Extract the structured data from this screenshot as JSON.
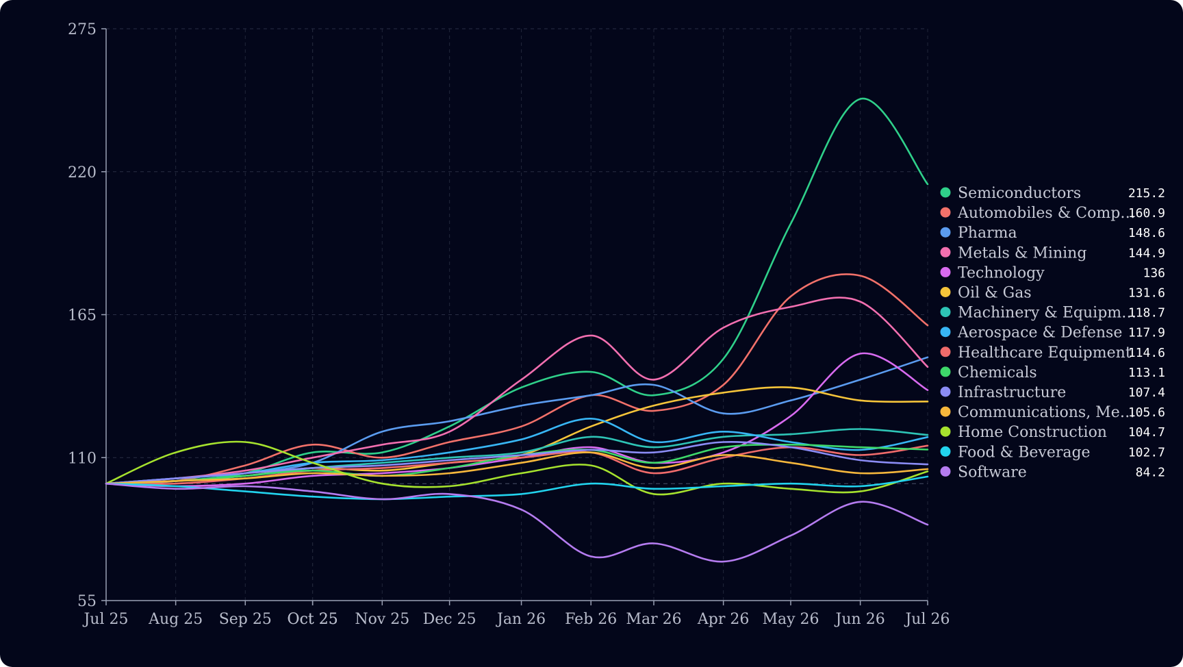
{
  "chart_data": {
    "type": "line",
    "title": "",
    "xlabel": "",
    "ylabel": "",
    "x_tick_labels": [
      "Jul 25",
      "Aug 25",
      "Sep 25",
      "Oct 25",
      "Oct 25",
      "Nov 25",
      "Dec 25",
      "Jan 26",
      "Feb 26",
      "Mar 26",
      "Apr 26",
      "May 26",
      "Jun 26",
      "Jul 26"
    ],
    "x_ticks": [
      "2025-07-25",
      "2025-08-25",
      "2025-09-25",
      "2025-10-25",
      "2025-10-25",
      "2025-11-25",
      "2025-12-25",
      "2026-01-26",
      "2026-02-26",
      "2026-03-26",
      "2026-04-26",
      "2026-05-26",
      "2026-06-26",
      "2026-07-26"
    ],
    "xlim": [
      "2025-07-25",
      "2026-07-26"
    ],
    "ylim": [
      55,
      275
    ],
    "y_ticks": [
      55,
      110,
      165,
      220,
      275
    ],
    "baseline": 100,
    "grid": true,
    "legend_position": "right",
    "x": [
      "2025-07-25",
      "2025-08-25",
      "2025-09-25",
      "2025-10-25",
      "2025-11-25",
      "2025-12-25",
      "2026-01-26",
      "2026-02-26",
      "2026-03-26",
      "2026-04-26",
      "2026-05-26",
      "2026-06-26",
      "2026-07-26"
    ],
    "series": [
      {
        "name": "Semiconductors",
        "color": "#2fd08a",
        "value_label": "215.2",
        "values": [
          100,
          101,
          104,
          112,
          112,
          122,
          137,
          143,
          134,
          148,
          200,
          248,
          215.2
        ]
      },
      {
        "name": "Automobiles & Comp…",
        "color": "#f2716a",
        "value_label": "160.9",
        "values": [
          100,
          101,
          107,
          115,
          110,
          116,
          122,
          134,
          128,
          138,
          172,
          180,
          160.9
        ]
      },
      {
        "name": "Pharma",
        "color": "#5b9cf0",
        "value_label": "148.6",
        "values": [
          100,
          102,
          104,
          108,
          120,
          124,
          130,
          134,
          138,
          127,
          132,
          140,
          148.6
        ]
      },
      {
        "name": "Metals & Mining",
        "color": "#f26fb0",
        "value_label": "144.9",
        "values": [
          100,
          102,
          105,
          110,
          115,
          120,
          140,
          157,
          140,
          160,
          168,
          170,
          144.9
        ]
      },
      {
        "name": "Technology",
        "color": "#d86bf0",
        "value_label": "136",
        "values": [
          100,
          99,
          100,
          103,
          104,
          106,
          110,
          114,
          108,
          112,
          126,
          150,
          136
        ]
      },
      {
        "name": "Oil & Gas",
        "color": "#f5c43a",
        "value_label": "131.6",
        "values": [
          100,
          101,
          103,
          106,
          105,
          108,
          111,
          122,
          130,
          135,
          137,
          132,
          131.6
        ]
      },
      {
        "name": "Machinery & Equipm…",
        "color": "#2ec4b6",
        "value_label": "118.7",
        "values": [
          100,
          101,
          103,
          106,
          108,
          110,
          112,
          118,
          114,
          118,
          119,
          121,
          118.7
        ]
      },
      {
        "name": "Aerospace & Defense",
        "color": "#38b6f5",
        "value_label": "117.9",
        "values": [
          100,
          102,
          104,
          108,
          109,
          112,
          117,
          125,
          116,
          120,
          116,
          113,
          117.9
        ]
      },
      {
        "name": "Healthcare Equipment",
        "color": "#f06b6b",
        "value_label": "114.6",
        "values": [
          100,
          100,
          102,
          105,
          106,
          108,
          110,
          112,
          104,
          110,
          114,
          111,
          114.6
        ]
      },
      {
        "name": "Chemicals",
        "color": "#3ed86a",
        "value_label": "113.1",
        "values": [
          100,
          101,
          103,
          105,
          103,
          106,
          111,
          113,
          108,
          114,
          115,
          114,
          113.1
        ]
      },
      {
        "name": "Infrastructure",
        "color": "#8b8cf5",
        "value_label": "107.4",
        "values": [
          100,
          102,
          104,
          106,
          107,
          109,
          111,
          113,
          112,
          116,
          114,
          109,
          107.4
        ]
      },
      {
        "name": "Communications, Me…",
        "color": "#f6b73c",
        "value_label": "105.6",
        "values": [
          100,
          101,
          102,
          104,
          103,
          104,
          108,
          112,
          106,
          111,
          108,
          104,
          105.6
        ]
      },
      {
        "name": "Home Construction",
        "color": "#a6e22e",
        "value_label": "104.7",
        "values": [
          100,
          112,
          116,
          108,
          100,
          99,
          104,
          107,
          96,
          100,
          98,
          97,
          104.7
        ]
      },
      {
        "name": "Food & Beverage",
        "color": "#22d3ee",
        "value_label": "102.7",
        "values": [
          100,
          99,
          97,
          95,
          94,
          95,
          96,
          100,
          98,
          99,
          100,
          99,
          102.7
        ]
      },
      {
        "name": "Software",
        "color": "#b57cf0",
        "value_label": "84.2",
        "values": [
          100,
          98,
          99,
          97,
          94,
          96,
          90,
          72,
          77,
          70,
          80,
          93,
          84.2
        ]
      }
    ]
  }
}
